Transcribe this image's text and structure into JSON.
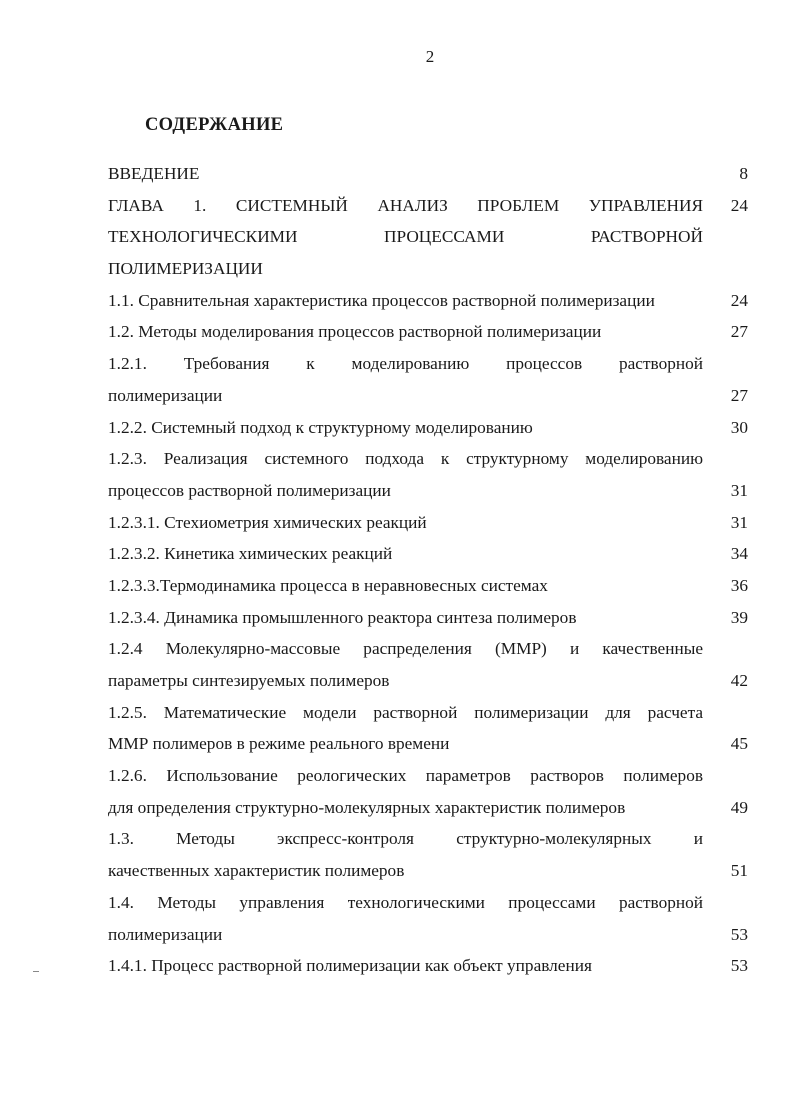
{
  "page_number": "2",
  "heading": "СОДЕРЖАНИЕ",
  "toc_rows": [
    {
      "text": "ВВЕДЕНИЕ",
      "page": "8"
    },
    {
      "text": "ГЛАВА 1. СИСТЕМНЫЙ АНАЛИЗ ПРОБЛЕМ УПРАВЛЕНИЯ",
      "page": "24"
    },
    {
      "text": "ТЕХНОЛОГИЧЕСКИМИ ПРОЦЕССАМИ РАСТВОРНОЙ",
      "page": ""
    },
    {
      "text": "ПОЛИМЕРИЗАЦИИ",
      "page": ""
    },
    {
      "text": "1.1. Сравнительная характеристика процессов растворной полимеризации",
      "page": "24"
    },
    {
      "text": "1.2. Методы моделирования процессов растворной полимеризации",
      "page": "27"
    },
    {
      "text": "1.2.1. Требования к моделированию процессов растворной",
      "page": ""
    },
    {
      "text": "полимеризации",
      "page": "27"
    },
    {
      "text": "1.2.2. Системный подход к структурному моделированию",
      "page": "30"
    },
    {
      "text": "1.2.3. Реализация системного подхода к структурному моделированию",
      "page": ""
    },
    {
      "text": "процессов растворной полимеризации",
      "page": "31"
    },
    {
      "text": "1.2.3.1. Стехиометрия химических реакций",
      "page": "31"
    },
    {
      "text": "1.2.3.2. Кинетика химических реакций",
      "page": "34"
    },
    {
      "text": "1.2.3.3.Термодинамика процесса в неравновесных системах",
      "page": "36"
    },
    {
      "text": "1.2.3.4. Динамика промышленного реактора синтеза полимеров",
      "page": "39"
    },
    {
      "text": "1.2.4 Молекулярно-массовые распределения (ММР) и качественные",
      "page": ""
    },
    {
      "text": "параметры синтезируемых полимеров",
      "page": "42"
    },
    {
      "text": "1.2.5. Математические модели растворной полимеризации для расчета",
      "page": ""
    },
    {
      "text": "ММР полимеров в режиме реального времени",
      "page": "45"
    },
    {
      "text": "1.2.6. Использование реологических параметров растворов полимеров",
      "page": ""
    },
    {
      "text": "для определения структурно-молекулярных характеристик полимеров",
      "page": "49"
    },
    {
      "text": "1.3. Методы экспресс-контроля структурно-молекулярных и",
      "page": ""
    },
    {
      "text": "качественных характеристик полимеров",
      "page": "51"
    },
    {
      "text": "1.4. Методы управления технологическими процессами растворной",
      "page": ""
    },
    {
      "text": "полимеризации",
      "page": "53"
    },
    {
      "text": "1.4.1. Процесс растворной полимеризации как объект управления",
      "page": "53"
    }
  ]
}
